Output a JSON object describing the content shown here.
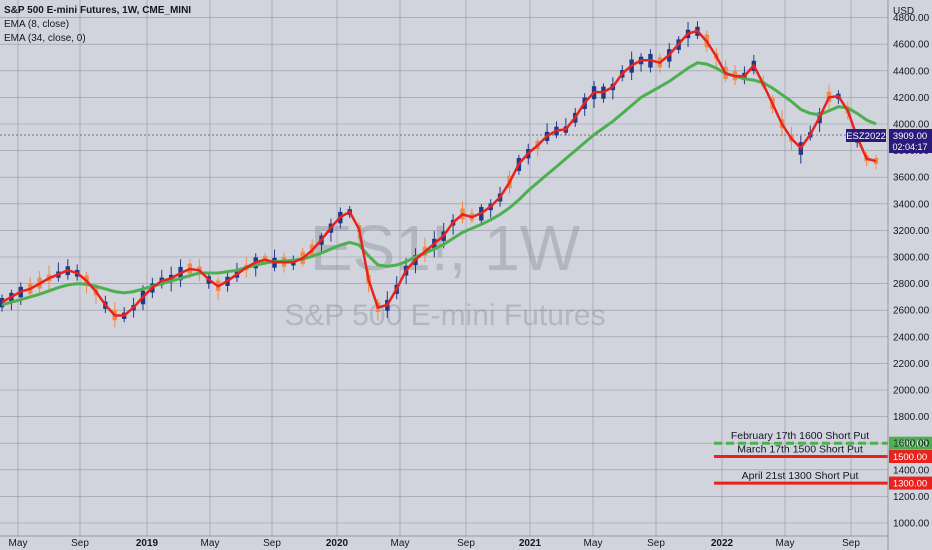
{
  "header": {
    "title": "S&P 500 E-mini Futures, 1W, CME_MINI",
    "indicators": [
      "EMA (8, close)",
      "EMA (34, close, 0)"
    ]
  },
  "watermark": {
    "symbol": "ES1!, 1W",
    "name": "S&P 500 E-mini Futures"
  },
  "axis": {
    "currency": "USD"
  },
  "price_badge": {
    "symbol": "ESZ2022",
    "price": "3909.00",
    "countdown": "02:04:17"
  },
  "annotations": [
    {
      "label": "February 17th 1600 Short Put",
      "price_label": "1600.00",
      "price": 1600,
      "color": "#4caf50",
      "dashed": true
    },
    {
      "label": "March 17th 1500 Short Put",
      "price_label": "1500.00",
      "price": 1500,
      "color": "#e8231e",
      "dashed": false
    },
    {
      "label": "April 21st 1300 Short Put",
      "price_label": "1300.00",
      "price": 1300,
      "color": "#e8231e",
      "dashed": false
    }
  ],
  "colors": {
    "background": "#d1d4dc",
    "grid": "#9598a1",
    "up": "#1e3a8a",
    "down": "#f08a4b",
    "ema_fast": "#e8231e",
    "ema_slow": "#4caf50",
    "badge": "#2a1a7a"
  },
  "chart_data": {
    "type": "candlestick",
    "title": "S&P 500 E-mini Futures, 1W, CME_MINI",
    "ylabel": "USD",
    "ylim": [
      950,
      4900
    ],
    "y_ticks": [
      1000,
      1200,
      1400,
      1600,
      1800,
      2000,
      2200,
      2400,
      2600,
      2800,
      3000,
      3200,
      3400,
      3600,
      3800,
      4000,
      4200,
      4400,
      4600,
      4800
    ],
    "x_ticks": [
      "May",
      "Sep",
      "2019",
      "May",
      "Sep",
      "2020",
      "May",
      "Sep",
      "2021",
      "May",
      "Sep",
      "2022",
      "May",
      "Sep"
    ],
    "last_price": 3909,
    "series": [
      {
        "name": "EMA (8, close)",
        "values": [
          2660,
          2700,
          2740,
          2760,
          2800,
          2840,
          2870,
          2900,
          2880,
          2820,
          2740,
          2640,
          2560,
          2560,
          2620,
          2700,
          2770,
          2820,
          2840,
          2880,
          2910,
          2900,
          2830,
          2780,
          2820,
          2870,
          2920,
          2960,
          2980,
          2960,
          2960,
          2960,
          2990,
          3050,
          3130,
          3220,
          3300,
          3340,
          3210,
          2830,
          2620,
          2640,
          2760,
          2900,
          2980,
          3040,
          3100,
          3160,
          3260,
          3320,
          3300,
          3330,
          3380,
          3450,
          3560,
          3700,
          3780,
          3840,
          3910,
          3950,
          3960,
          4050,
          4160,
          4240,
          4240,
          4280,
          4380,
          4440,
          4480,
          4480,
          4460,
          4520,
          4600,
          4680,
          4700,
          4620,
          4510,
          4380,
          4360,
          4360,
          4440,
          4300,
          4150,
          4000,
          3890,
          3820,
          3920,
          4050,
          4200,
          4210,
          4100,
          3900,
          3740,
          3720
        ]
      },
      {
        "name": "EMA (34, close, 0)",
        "values": [
          2640,
          2660,
          2680,
          2700,
          2720,
          2745,
          2770,
          2790,
          2800,
          2795,
          2780,
          2760,
          2740,
          2730,
          2740,
          2760,
          2780,
          2800,
          2820,
          2840,
          2860,
          2880,
          2880,
          2880,
          2890,
          2900,
          2920,
          2940,
          2955,
          2965,
          2970,
          2975,
          2985,
          3005,
          3030,
          3060,
          3090,
          3110,
          3090,
          3010,
          2940,
          2930,
          2940,
          2965,
          3000,
          3030,
          3060,
          3095,
          3140,
          3185,
          3215,
          3245,
          3280,
          3320,
          3370,
          3430,
          3500,
          3560,
          3620,
          3680,
          3740,
          3800,
          3860,
          3920,
          3970,
          4020,
          4080,
          4140,
          4200,
          4240,
          4280,
          4320,
          4370,
          4420,
          4460,
          4450,
          4420,
          4380,
          4360,
          4340,
          4330,
          4310,
          4270,
          4220,
          4170,
          4110,
          4080,
          4070,
          4100,
          4130,
          4120,
          4080,
          4030,
          4000
        ]
      }
    ],
    "price_lines": [
      1600,
      1500,
      1300
    ]
  }
}
